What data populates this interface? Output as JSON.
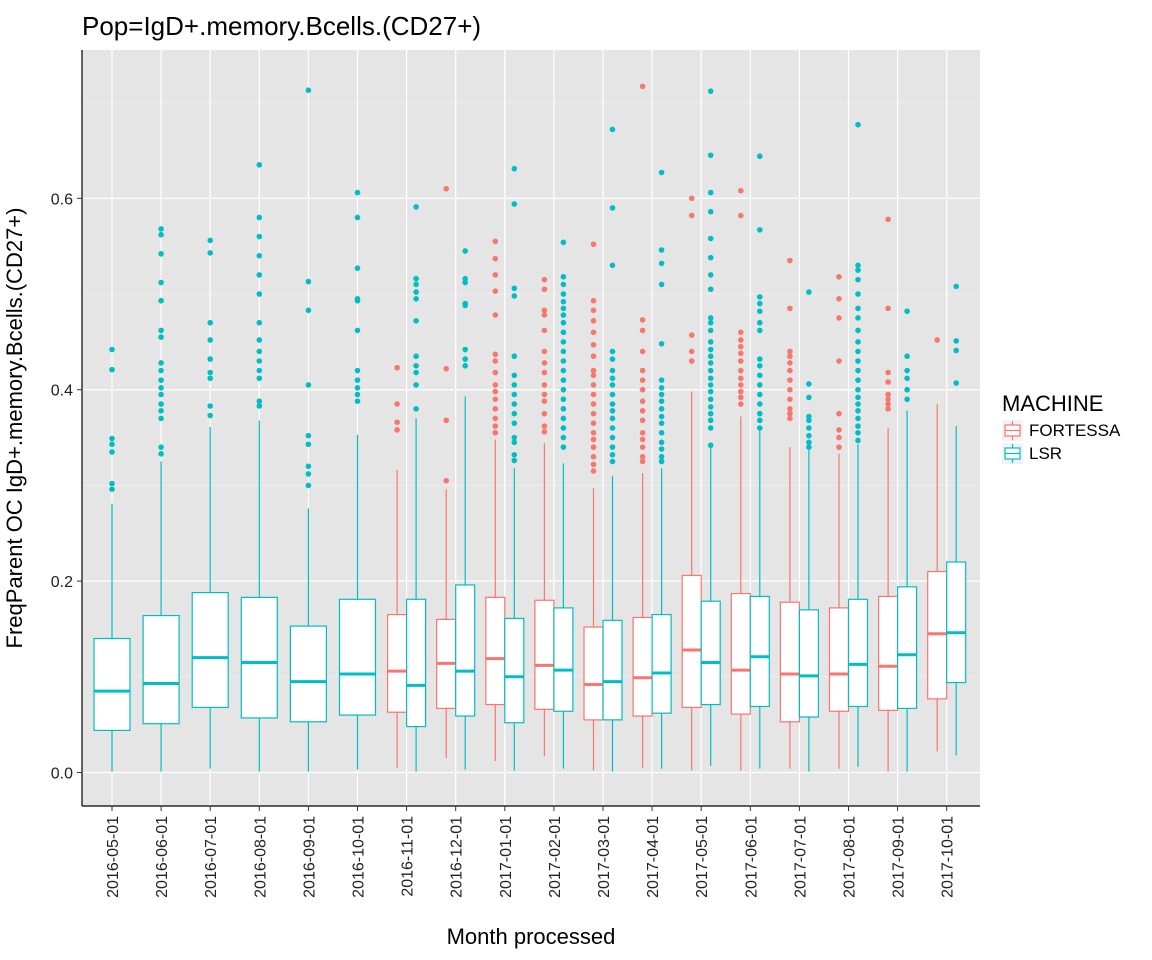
{
  "chart_data": {
    "type": "boxplot",
    "title": "Pop=IgD+.memory.Bcells.(CD27+)",
    "xlabel": "Month processed",
    "ylabel": "FreqParent OC  IgD+.memory.Bcells.(CD27+)",
    "ylim": [
      -0.035,
      0.755
    ],
    "yticks": [
      "0.0",
      "0.2",
      "0.4",
      "0.6"
    ],
    "categories": [
      "2016-05-01",
      "2016-06-01",
      "2016-07-01",
      "2016-08-01",
      "2016-09-01",
      "2016-10-01",
      "2016-11-01",
      "2016-12-01",
      "2017-01-01",
      "2017-02-01",
      "2017-03-01",
      "2017-04-01",
      "2017-05-01",
      "2017-06-01",
      "2017-07-01",
      "2017-08-01",
      "2017-09-01",
      "2017-10-01"
    ],
    "grid": true,
    "legend": {
      "title": "MACHINE",
      "placement": "right",
      "entries": [
        {
          "name": "FORTESSA",
          "color": "#F8766D"
        },
        {
          "name": "LSR",
          "color": "#00BFC4"
        }
      ]
    },
    "series": [
      {
        "name": "FORTESSA",
        "color": "#F8766D",
        "boxes": [
          null,
          null,
          null,
          null,
          null,
          null,
          {
            "min": 0.005,
            "q1": 0.063,
            "median": 0.106,
            "q3": 0.165,
            "max": 0.316,
            "outliers": [
              0.423,
              0.385,
              0.366,
              0.358
            ]
          },
          {
            "min": 0.015,
            "q1": 0.067,
            "median": 0.114,
            "q3": 0.16,
            "max": 0.296,
            "outliers": [
              0.61,
              0.422,
              0.368,
              0.305
            ]
          },
          {
            "min": 0.012,
            "q1": 0.071,
            "median": 0.119,
            "q3": 0.183,
            "max": 0.348,
            "outliers": [
              0.555,
              0.537,
              0.52,
              0.503,
              0.478,
              0.437,
              0.43,
              0.418,
              0.405,
              0.398,
              0.39,
              0.38,
              0.37,
              0.362,
              0.355
            ]
          },
          {
            "min": 0.017,
            "q1": 0.066,
            "median": 0.112,
            "q3": 0.18,
            "max": 0.344,
            "outliers": [
              0.515,
              0.505,
              0.483,
              0.478,
              0.462,
              0.44,
              0.428,
              0.418,
              0.405,
              0.395,
              0.388,
              0.375,
              0.362,
              0.356
            ]
          },
          {
            "min": 0.002,
            "q1": 0.055,
            "median": 0.092,
            "q3": 0.152,
            "max": 0.297,
            "outliers": [
              0.552,
              0.493,
              0.483,
              0.472,
              0.46,
              0.447,
              0.435,
              0.42,
              0.415,
              0.405,
              0.395,
              0.385,
              0.375,
              0.365,
              0.355,
              0.348,
              0.34,
              0.33,
              0.322,
              0.315
            ]
          },
          {
            "min": 0.005,
            "q1": 0.059,
            "median": 0.099,
            "q3": 0.162,
            "max": 0.313,
            "outliers": [
              0.717,
              0.473,
              0.462,
              0.44,
              0.42,
              0.41,
              0.4,
              0.388,
              0.378,
              0.368,
              0.355,
              0.348,
              0.34,
              0.33,
              0.325
            ]
          },
          {
            "min": 0.002,
            "q1": 0.068,
            "median": 0.128,
            "q3": 0.206,
            "max": 0.398,
            "outliers": [
              0.6,
              0.582,
              0.457,
              0.44,
              0.43
            ]
          },
          {
            "min": 0.002,
            "q1": 0.061,
            "median": 0.107,
            "q3": 0.187,
            "max": 0.372,
            "outliers": [
              0.608,
              0.582,
              0.46,
              0.452,
              0.445,
              0.438,
              0.43,
              0.42,
              0.412,
              0.405,
              0.398,
              0.392,
              0.385
            ]
          },
          {
            "min": 0.004,
            "q1": 0.053,
            "median": 0.103,
            "q3": 0.178,
            "max": 0.34,
            "outliers": [
              0.535,
              0.485,
              0.44,
              0.435,
              0.428,
              0.42,
              0.41,
              0.4,
              0.39,
              0.38,
              0.375,
              0.37
            ]
          },
          {
            "min": 0.004,
            "q1": 0.064,
            "median": 0.103,
            "q3": 0.172,
            "max": 0.333,
            "outliers": [
              0.518,
              0.495,
              0.475,
              0.43,
              0.375,
              0.358,
              0.35,
              0.34
            ]
          },
          {
            "min": 0.001,
            "q1": 0.065,
            "median": 0.111,
            "q3": 0.184,
            "max": 0.36,
            "outliers": [
              0.578,
              0.485,
              0.418,
              0.408,
              0.395,
              0.39,
              0.385,
              0.38
            ]
          },
          {
            "min": 0.022,
            "q1": 0.077,
            "median": 0.145,
            "q3": 0.21,
            "max": 0.385,
            "outliers": [
              0.452
            ]
          }
        ]
      },
      {
        "name": "LSR",
        "color": "#00BFC4",
        "boxes": [
          {
            "min": 0.001,
            "q1": 0.044,
            "median": 0.085,
            "q3": 0.14,
            "max": 0.281,
            "outliers": [
              0.442,
              0.421,
              0.349,
              0.343,
              0.335,
              0.302,
              0.296
            ]
          },
          {
            "min": 0.001,
            "q1": 0.051,
            "median": 0.093,
            "q3": 0.164,
            "max": 0.325,
            "outliers": [
              0.568,
              0.562,
              0.542,
              0.512,
              0.493,
              0.462,
              0.455,
              0.428,
              0.42,
              0.41,
              0.402,
              0.395,
              0.385,
              0.378,
              0.37,
              0.34,
              0.333
            ]
          },
          {
            "min": 0.004,
            "q1": 0.068,
            "median": 0.12,
            "q3": 0.188,
            "max": 0.361,
            "outliers": [
              0.556,
              0.543,
              0.47,
              0.452,
              0.432,
              0.418,
              0.412,
              0.383,
              0.373
            ]
          },
          {
            "min": 0.001,
            "q1": 0.057,
            "median": 0.115,
            "q3": 0.183,
            "max": 0.368,
            "outliers": [
              0.635,
              0.58,
              0.56,
              0.54,
              0.52,
              0.5,
              0.47,
              0.452,
              0.44,
              0.43,
              0.42,
              0.412,
              0.388,
              0.383
            ]
          },
          {
            "min": 0.001,
            "q1": 0.053,
            "median": 0.095,
            "q3": 0.153,
            "max": 0.276,
            "outliers": [
              0.713,
              0.513,
              0.483,
              0.405,
              0.352,
              0.343,
              0.32,
              0.312,
              0.3
            ]
          },
          {
            "min": 0.003,
            "q1": 0.06,
            "median": 0.103,
            "q3": 0.181,
            "max": 0.353,
            "outliers": [
              0.606,
              0.58,
              0.527,
              0.495,
              0.493,
              0.462,
              0.42,
              0.41,
              0.402,
              0.395,
              0.388
            ]
          },
          {
            "min": 0.001,
            "q1": 0.048,
            "median": 0.091,
            "q3": 0.181,
            "max": 0.37,
            "outliers": [
              0.591,
              0.516,
              0.51,
              0.502,
              0.495,
              0.472,
              0.435,
              0.425,
              0.418,
              0.405,
              0.38
            ]
          },
          {
            "min": 0.003,
            "q1": 0.059,
            "median": 0.106,
            "q3": 0.196,
            "max": 0.393,
            "outliers": [
              0.545,
              0.516,
              0.512,
              0.49,
              0.488,
              0.442,
              0.432,
              0.425
            ]
          },
          {
            "min": 0.002,
            "q1": 0.052,
            "median": 0.1,
            "q3": 0.161,
            "max": 0.318,
            "outliers": [
              0.631,
              0.594,
              0.506,
              0.498,
              0.435,
              0.415,
              0.405,
              0.395,
              0.385,
              0.375,
              0.365,
              0.35,
              0.345,
              0.332,
              0.326
            ]
          },
          {
            "min": 0.004,
            "q1": 0.064,
            "median": 0.107,
            "q3": 0.172,
            "max": 0.323,
            "outliers": [
              0.554,
              0.518,
              0.51,
              0.5,
              0.492,
              0.485,
              0.478,
              0.47,
              0.46,
              0.45,
              0.44,
              0.43,
              0.42,
              0.41,
              0.4,
              0.39,
              0.38,
              0.37,
              0.36,
              0.35,
              0.34
            ]
          },
          {
            "min": 0.001,
            "q1": 0.055,
            "median": 0.095,
            "q3": 0.159,
            "max": 0.31,
            "outliers": [
              0.672,
              0.59,
              0.53,
              0.44,
              0.432,
              0.42,
              0.412,
              0.405,
              0.395,
              0.385,
              0.378,
              0.37,
              0.36,
              0.35,
              0.34,
              0.332,
              0.325
            ]
          },
          {
            "min": 0.004,
            "q1": 0.062,
            "median": 0.104,
            "q3": 0.165,
            "max": 0.318,
            "outliers": [
              0.627,
              0.546,
              0.532,
              0.51,
              0.448,
              0.41,
              0.402,
              0.395,
              0.388,
              0.38,
              0.372,
              0.365,
              0.355,
              0.345,
              0.338,
              0.33,
              0.325
            ]
          },
          {
            "min": 0.007,
            "q1": 0.071,
            "median": 0.115,
            "q3": 0.179,
            "max": 0.342,
            "outliers": [
              0.712,
              0.645,
              0.606,
              0.586,
              0.558,
              0.538,
              0.52,
              0.505,
              0.475,
              0.47,
              0.462,
              0.45,
              0.442,
              0.435,
              0.428,
              0.42,
              0.412,
              0.405,
              0.398,
              0.39,
              0.382,
              0.375,
              0.368,
              0.36,
              0.342
            ]
          },
          {
            "min": 0.004,
            "q1": 0.069,
            "median": 0.121,
            "q3": 0.184,
            "max": 0.357,
            "outliers": [
              0.644,
              0.567,
              0.497,
              0.49,
              0.482,
              0.47,
              0.462,
              0.432,
              0.425,
              0.415,
              0.405,
              0.395,
              0.385,
              0.375,
              0.368,
              0.36
            ]
          },
          {
            "min": 0.001,
            "q1": 0.058,
            "median": 0.101,
            "q3": 0.17,
            "max": 0.337,
            "outliers": [
              0.502,
              0.406,
              0.392,
              0.372,
              0.368,
              0.36,
              0.352,
              0.345,
              0.34
            ]
          },
          {
            "min": 0.006,
            "q1": 0.069,
            "median": 0.113,
            "q3": 0.181,
            "max": 0.343,
            "outliers": [
              0.677,
              0.53,
              0.525,
              0.515,
              0.5,
              0.485,
              0.475,
              0.462,
              0.45,
              0.44,
              0.43,
              0.42,
              0.41,
              0.4,
              0.392,
              0.385,
              0.378,
              0.37,
              0.362,
              0.355,
              0.347
            ]
          },
          {
            "min": 0.001,
            "q1": 0.067,
            "median": 0.123,
            "q3": 0.194,
            "max": 0.378,
            "outliers": [
              0.482,
              0.435,
              0.42,
              0.412,
              0.4,
              0.39
            ]
          },
          {
            "min": 0.018,
            "q1": 0.094,
            "median": 0.146,
            "q3": 0.22,
            "max": 0.362,
            "outliers": [
              0.508,
              0.451,
              0.441,
              0.407
            ]
          }
        ]
      }
    ]
  }
}
